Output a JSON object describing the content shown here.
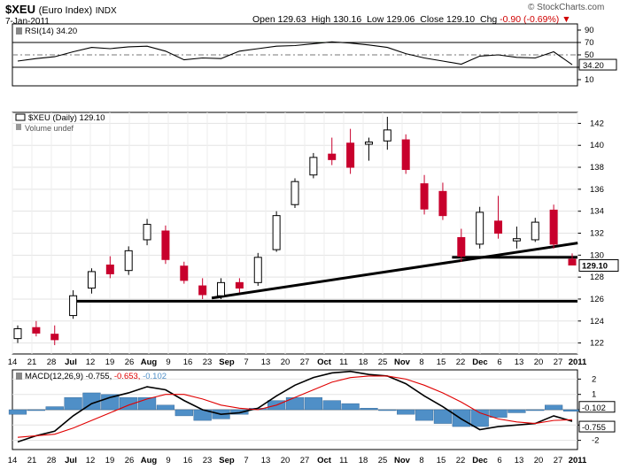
{
  "header": {
    "symbol": "$XEU",
    "description": "(Euro Index)",
    "exchange": "INDX",
    "date": "7-Jan-2011",
    "brand": "© StockCharts.com",
    "open_label": "Open",
    "open": "129.63",
    "high_label": "High",
    "high": "130.16",
    "low_label": "Low",
    "low": "129.06",
    "close_label": "Close",
    "close": "129.10",
    "chg_label": "Chg",
    "chg": "-0.90 (-0.69%)"
  },
  "colors": {
    "up": "#000000",
    "down": "#c8002c",
    "rsi_fill": "#3e7c33",
    "macd_line": "#000000",
    "signal_line": "#e00000",
    "histogram": "#4f8fc7"
  },
  "chart_data": [
    {
      "type": "line",
      "legend": "RSI(14) 34.20",
      "levels": [
        30,
        50,
        70
      ],
      "y_ticks": [
        "10",
        "30",
        "50",
        "70",
        "90"
      ],
      "ylim": [
        0,
        100
      ],
      "last_label": "34.20",
      "x": [
        "Jun 14",
        "Jun 21",
        "Jun 28",
        "Jul 5",
        "Jul 12",
        "Jul 19",
        "Jul 26",
        "Aug 2",
        "Aug 9",
        "Aug 16",
        "Aug 23",
        "Aug 30",
        "Sep 7",
        "Sep 13",
        "Sep 20",
        "Sep 27",
        "Oct 4",
        "Oct 11",
        "Oct 18",
        "Oct 25",
        "Nov 1",
        "Nov 8",
        "Nov 15",
        "Nov 22",
        "Nov 29",
        "Dec 6",
        "Dec 13",
        "Dec 20",
        "Dec 27",
        "Jan 3",
        "Jan 7"
      ],
      "values": [
        40,
        44,
        47,
        55,
        62,
        60,
        63,
        64,
        56,
        42,
        45,
        44,
        56,
        60,
        64,
        65,
        68,
        71,
        69,
        66,
        62,
        52,
        45,
        40,
        35,
        48,
        50,
        46,
        45,
        55,
        34.2
      ]
    },
    {
      "type": "candlestick",
      "legend": "$XEU (Daily) 129.10",
      "legend2": "Volume undef",
      "y_ticks": [
        "122",
        "124",
        "126",
        "128",
        "130",
        "132",
        "134",
        "136",
        "138",
        "140",
        "142"
      ],
      "ylim": [
        121,
        143
      ],
      "last_label": "129.10",
      "x_ticks": [
        "14",
        "21",
        "28",
        "Jul",
        "12",
        "19",
        "26",
        "Aug",
        "9",
        "16",
        "23",
        "Sep",
        "7",
        "13",
        "20",
        "27",
        "Oct",
        "11",
        "18",
        "25",
        "Nov",
        "8",
        "15",
        "22",
        "Dec",
        "6",
        "13",
        "20",
        "27",
        "2011"
      ],
      "x": [
        "Jun 14",
        "Jun 21",
        "Jun 28",
        "Jul 5",
        "Jul 12",
        "Jul 19",
        "Jul 26",
        "Aug 2",
        "Aug 9",
        "Aug 16",
        "Aug 23",
        "Aug 30",
        "Sep 7",
        "Sep 13",
        "Sep 20",
        "Sep 27",
        "Oct 4",
        "Oct 11",
        "Oct 18",
        "Oct 25",
        "Nov 1",
        "Nov 8",
        "Nov 15",
        "Nov 22",
        "Nov 29",
        "Dec 6",
        "Dec 13",
        "Dec 20",
        "Dec 27",
        "Jan 3",
        "Jan 7"
      ],
      "candles": [
        {
          "o": 122.4,
          "h": 123.6,
          "l": 122.0,
          "c": 123.3
        },
        {
          "o": 123.4,
          "h": 124.0,
          "l": 122.6,
          "c": 122.9
        },
        {
          "o": 122.8,
          "h": 123.6,
          "l": 121.8,
          "c": 122.3
        },
        {
          "o": 124.5,
          "h": 126.8,
          "l": 124.2,
          "c": 126.3
        },
        {
          "o": 127.0,
          "h": 128.8,
          "l": 126.5,
          "c": 128.5
        },
        {
          "o": 129.1,
          "h": 129.9,
          "l": 127.9,
          "c": 128.3
        },
        {
          "o": 128.6,
          "h": 130.8,
          "l": 128.2,
          "c": 130.4
        },
        {
          "o": 131.4,
          "h": 133.3,
          "l": 130.9,
          "c": 132.8
        },
        {
          "o": 132.2,
          "h": 132.7,
          "l": 129.2,
          "c": 129.6
        },
        {
          "o": 129.0,
          "h": 129.4,
          "l": 127.4,
          "c": 127.7
        },
        {
          "o": 127.2,
          "h": 127.9,
          "l": 126.0,
          "c": 126.4
        },
        {
          "o": 126.3,
          "h": 127.9,
          "l": 126.0,
          "c": 127.5
        },
        {
          "o": 127.5,
          "h": 127.9,
          "l": 126.6,
          "c": 127.0
        },
        {
          "o": 127.5,
          "h": 130.2,
          "l": 127.2,
          "c": 129.8
        },
        {
          "o": 130.5,
          "h": 134.0,
          "l": 130.3,
          "c": 133.6
        },
        {
          "o": 134.6,
          "h": 137.0,
          "l": 134.3,
          "c": 136.7
        },
        {
          "o": 137.3,
          "h": 139.3,
          "l": 137.0,
          "c": 138.9
        },
        {
          "o": 139.2,
          "h": 140.7,
          "l": 138.2,
          "c": 138.7
        },
        {
          "o": 140.2,
          "h": 141.5,
          "l": 137.4,
          "c": 138.0
        },
        {
          "o": 140.1,
          "h": 140.7,
          "l": 138.6,
          "c": 140.3
        },
        {
          "o": 140.4,
          "h": 142.6,
          "l": 139.6,
          "c": 141.4
        },
        {
          "o": 140.5,
          "h": 141.0,
          "l": 137.4,
          "c": 137.8
        },
        {
          "o": 136.5,
          "h": 137.3,
          "l": 133.7,
          "c": 134.2
        },
        {
          "o": 135.8,
          "h": 136.6,
          "l": 133.2,
          "c": 133.6
        },
        {
          "o": 131.6,
          "h": 132.4,
          "l": 129.4,
          "c": 129.9
        },
        {
          "o": 131.0,
          "h": 134.4,
          "l": 130.6,
          "c": 133.9
        },
        {
          "o": 133.1,
          "h": 135.4,
          "l": 131.5,
          "c": 132.0
        },
        {
          "o": 131.3,
          "h": 132.6,
          "l": 130.6,
          "c": 131.5
        },
        {
          "o": 131.4,
          "h": 133.4,
          "l": 131.2,
          "c": 133.0
        },
        {
          "o": 134.1,
          "h": 134.6,
          "l": 130.6,
          "c": 131.0
        },
        {
          "o": 129.63,
          "h": 130.16,
          "l": 129.06,
          "c": 129.1
        }
      ]
    },
    {
      "type": "line",
      "legend_prefix": "MACD(12,26,9)",
      "legend_macd": "-0.755,",
      "legend_signal": "-0.653,",
      "legend_hist": "-0.102",
      "y_ticks": [
        "2",
        "1",
        "0",
        "-1",
        "-2"
      ],
      "ylim": [
        -2.6,
        2.6
      ],
      "last_labels": [
        "-0.102",
        "-0.755"
      ],
      "x_ticks": [
        "14",
        "21",
        "28",
        "Jul",
        "12",
        "19",
        "26",
        "Aug",
        "9",
        "16",
        "23",
        "Sep",
        "7",
        "13",
        "20",
        "27",
        "Oct",
        "11",
        "18",
        "25",
        "Nov",
        "8",
        "15",
        "22",
        "Dec",
        "6",
        "13",
        "20",
        "27",
        "2011"
      ],
      "x": [
        "Jun 14",
        "Jun 21",
        "Jun 28",
        "Jul 5",
        "Jul 12",
        "Jul 19",
        "Jul 26",
        "Aug 2",
        "Aug 9",
        "Aug 16",
        "Aug 23",
        "Aug 30",
        "Sep 7",
        "Sep 13",
        "Sep 20",
        "Sep 27",
        "Oct 4",
        "Oct 11",
        "Oct 18",
        "Oct 25",
        "Nov 1",
        "Nov 8",
        "Nov 15",
        "Nov 22",
        "Nov 29",
        "Dec 6",
        "Dec 13",
        "Dec 20",
        "Dec 27",
        "Jan 3",
        "Jan 7"
      ],
      "series": [
        {
          "name": "MACD",
          "values": [
            -2.1,
            -1.7,
            -1.4,
            -0.4,
            0.4,
            0.8,
            1.1,
            1.5,
            1.3,
            0.6,
            0.0,
            -0.3,
            -0.2,
            0.1,
            0.9,
            1.6,
            2.1,
            2.4,
            2.5,
            2.3,
            2.2,
            1.7,
            0.9,
            0.2,
            -0.6,
            -1.3,
            -1.1,
            -1.0,
            -0.9,
            -0.4,
            -0.755
          ]
        },
        {
          "name": "Signal",
          "values": [
            -1.8,
            -1.7,
            -1.6,
            -1.2,
            -0.7,
            -0.2,
            0.3,
            0.7,
            1.0,
            1.0,
            0.7,
            0.3,
            0.1,
            0.0,
            0.3,
            0.8,
            1.3,
            1.8,
            2.1,
            2.2,
            2.2,
            2.0,
            1.6,
            1.1,
            0.5,
            -0.2,
            -0.6,
            -0.8,
            -0.9,
            -0.7,
            -0.653
          ]
        }
      ],
      "histogram": [
        -0.3,
        0.0,
        0.2,
        0.8,
        1.1,
        1.0,
        0.8,
        0.8,
        0.3,
        -0.4,
        -0.7,
        -0.6,
        -0.3,
        0.1,
        0.6,
        0.8,
        0.8,
        0.6,
        0.4,
        0.1,
        0.0,
        -0.3,
        -0.7,
        -0.9,
        -1.1,
        -1.1,
        -0.5,
        -0.2,
        0.0,
        0.3,
        -0.102
      ]
    }
  ]
}
